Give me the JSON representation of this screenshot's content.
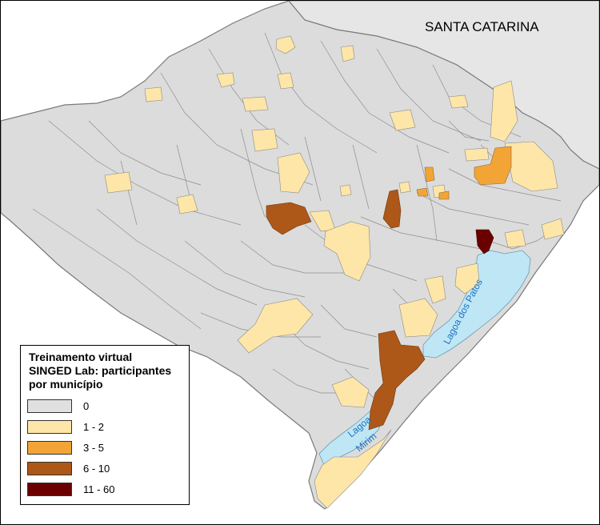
{
  "map": {
    "region_label": "SANTA CATARINA",
    "lake_labels": {
      "patos": "Lagoa dos Patos",
      "mirim_line1": "Lagoa",
      "mirim_line2": "Mirim"
    }
  },
  "legend": {
    "title": "Treinamento virtual\nSINGED Lab: participantes\npor município",
    "classes": [
      {
        "label": "0",
        "color": "#e0e0e0"
      },
      {
        "label": "1 - 2",
        "color": "#fde6a8"
      },
      {
        "label": "3 - 5",
        "color": "#f2a536"
      },
      {
        "label": "6 - 10",
        "color": "#ad5719"
      },
      {
        "label": "11 - 60",
        "color": "#6b0000"
      }
    ]
  },
  "colors": {
    "background_state": "#e6e6e6",
    "water": "#bfe6f5",
    "lake_text": "#1a73c2"
  }
}
